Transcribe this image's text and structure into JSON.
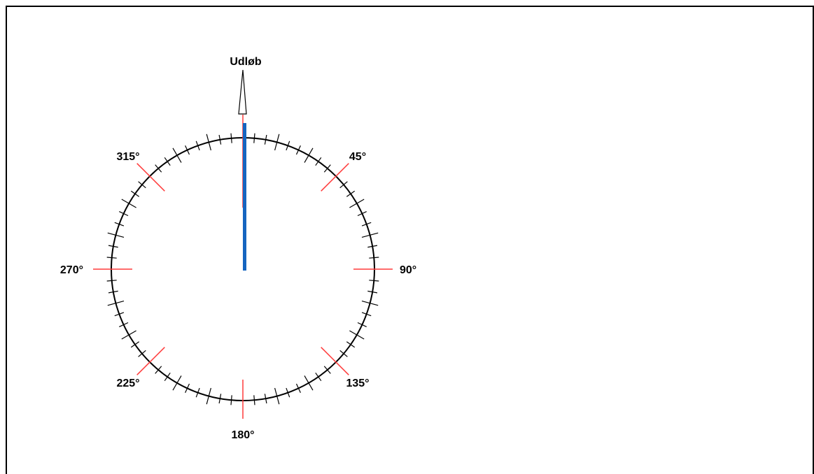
{
  "outlet": {
    "label": "Udløb"
  },
  "compass": {
    "tick_step_deg": 5,
    "major_step_deg": 45,
    "major_labels": [
      {
        "angle": 0,
        "text": ""
      },
      {
        "angle": 45,
        "text": "45°"
      },
      {
        "angle": 90,
        "text": "90°"
      },
      {
        "angle": 135,
        "text": "135°"
      },
      {
        "angle": 180,
        "text": "180°"
      },
      {
        "angle": 225,
        "text": "225°"
      },
      {
        "angle": 270,
        "text": "270°"
      },
      {
        "angle": 315,
        "text": "315°"
      }
    ],
    "colors": {
      "circle": "#000000",
      "minor_tick": "#000000",
      "major_tick": "#ff3b3b",
      "needle": "#1565c0",
      "outlet_line": "#ff3b3b"
    }
  },
  "needle": {
    "direction_deg": 0
  }
}
